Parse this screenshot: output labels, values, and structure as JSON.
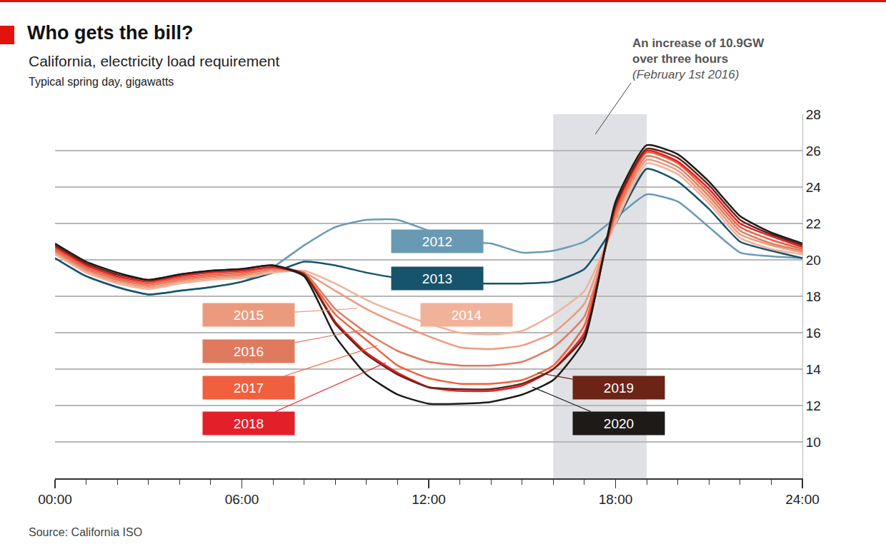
{
  "chart_data": {
    "type": "line",
    "title": "Who gets the bill?",
    "subtitle": "California, electricity load requirement",
    "ylabel": "Typical spring day, gigawatts",
    "source": "Source: California ISO",
    "x": [
      0,
      1,
      2,
      3,
      4,
      5,
      6,
      7,
      8,
      9,
      10,
      11,
      12,
      13,
      14,
      15,
      16,
      17,
      18,
      19,
      20,
      21,
      22,
      23,
      24
    ],
    "xlim": [
      0,
      24
    ],
    "xticks": [
      {
        "value": 0,
        "label": "00:00"
      },
      {
        "value": 6,
        "label": "06:00"
      },
      {
        "value": 12,
        "label": "12:00"
      },
      {
        "value": 18,
        "label": "18:00"
      },
      {
        "value": 24,
        "label": "24:00"
      }
    ],
    "ylim": [
      8,
      28
    ],
    "yticks": [
      10,
      12,
      14,
      16,
      18,
      20,
      22,
      24,
      26,
      28
    ],
    "grid": true,
    "annotations": [
      {
        "text": [
          "An increase of 10.9GW",
          "over three hours"
        ],
        "subtext": "(February 1st 2016)",
        "x_range": [
          16,
          19
        ]
      }
    ],
    "series": [
      {
        "name": "2012",
        "color": "#6a9ab3",
        "values": [
          20.1,
          19.1,
          18.5,
          18.1,
          18.3,
          18.5,
          18.8,
          19.6,
          20.8,
          21.8,
          22.2,
          22.2,
          21.6,
          21.0,
          20.9,
          20.4,
          20.5,
          21.0,
          22.3,
          23.6,
          23.2,
          21.8,
          20.4,
          20.2,
          20.1
        ]
      },
      {
        "name": "2013",
        "color": "#17536b",
        "values": [
          20.1,
          19.1,
          18.5,
          18.1,
          18.3,
          18.5,
          18.8,
          19.3,
          19.9,
          19.7,
          19.3,
          19.0,
          18.8,
          18.7,
          18.7,
          18.7,
          18.8,
          19.5,
          22.0,
          25.0,
          24.3,
          22.8,
          21.0,
          20.5,
          20.1
        ]
      },
      {
        "name": "2014",
        "color": "#f2b29a",
        "values": [
          20.3,
          19.3,
          18.7,
          18.4,
          18.7,
          18.9,
          19.0,
          19.3,
          19.4,
          18.7,
          17.8,
          17.1,
          16.5,
          16.0,
          15.9,
          16.1,
          17.0,
          18.3,
          22.0,
          25.3,
          24.7,
          23.1,
          21.2,
          20.6,
          20.3
        ]
      },
      {
        "name": "2015",
        "color": "#ec9a7e",
        "values": [
          20.4,
          19.4,
          18.8,
          18.5,
          18.8,
          19.0,
          19.1,
          19.4,
          19.3,
          18.3,
          17.3,
          16.5,
          15.8,
          15.2,
          15.1,
          15.3,
          16.0,
          17.6,
          22.3,
          25.5,
          24.9,
          23.3,
          21.4,
          20.8,
          20.4
        ]
      },
      {
        "name": "2016",
        "color": "#e07a5f",
        "values": [
          20.5,
          19.5,
          18.9,
          18.6,
          18.9,
          19.1,
          19.2,
          19.5,
          19.3,
          17.3,
          16.0,
          15.0,
          14.4,
          14.2,
          14.2,
          14.4,
          15.2,
          16.9,
          22.5,
          25.7,
          25.1,
          23.5,
          21.6,
          20.9,
          20.5
        ]
      },
      {
        "name": "2017",
        "color": "#f0603e",
        "values": [
          20.6,
          19.6,
          19.0,
          18.7,
          19.0,
          19.2,
          19.3,
          19.6,
          19.2,
          17.0,
          15.6,
          14.2,
          13.5,
          13.2,
          13.2,
          13.4,
          14.2,
          16.4,
          22.7,
          25.9,
          25.3,
          23.7,
          21.8,
          21.1,
          20.6
        ]
      },
      {
        "name": "2018",
        "color": "#e3202a",
        "values": [
          20.7,
          19.7,
          19.1,
          18.8,
          19.1,
          19.3,
          19.4,
          19.6,
          19.2,
          16.6,
          14.9,
          13.8,
          13.0,
          12.8,
          12.8,
          13.1,
          14.0,
          16.0,
          22.9,
          26.0,
          25.4,
          23.9,
          22.0,
          21.3,
          20.7
        ]
      },
      {
        "name": "2019",
        "color": "#6b2416",
        "values": [
          20.8,
          19.8,
          19.2,
          18.9,
          19.2,
          19.4,
          19.5,
          19.7,
          19.2,
          16.5,
          14.8,
          13.7,
          13.0,
          12.9,
          12.9,
          13.2,
          14.0,
          15.8,
          23.0,
          26.1,
          25.6,
          24.1,
          22.2,
          21.4,
          20.8
        ]
      },
      {
        "name": "2020",
        "color": "#1e1a18",
        "values": [
          20.9,
          19.9,
          19.3,
          18.9,
          19.2,
          19.4,
          19.5,
          19.7,
          19.1,
          15.8,
          13.7,
          12.6,
          12.1,
          12.1,
          12.2,
          12.6,
          13.4,
          15.6,
          23.2,
          26.3,
          25.8,
          24.3,
          22.4,
          21.5,
          20.9
        ]
      }
    ]
  }
}
